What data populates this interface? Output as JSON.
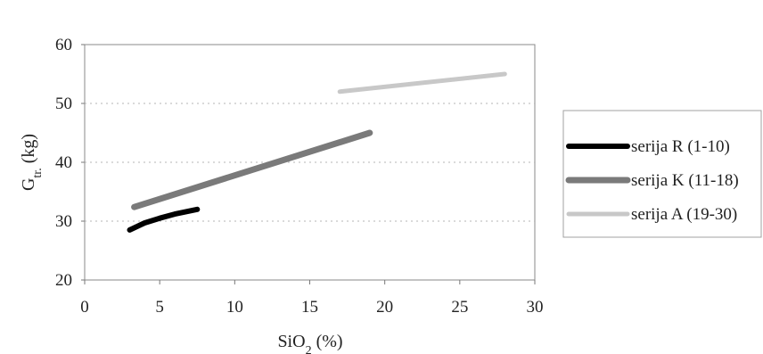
{
  "chart_data": {
    "type": "line",
    "title": "",
    "xlabel": {
      "main": "SiO",
      "sub": "2",
      "suffix": " (%)"
    },
    "ylabel": {
      "main": "G",
      "sub": "tr.",
      "suffix": " (kg)"
    },
    "xlim": [
      0,
      30
    ],
    "ylim": [
      20,
      60
    ],
    "xticks": [
      0,
      5,
      10,
      15,
      20,
      25,
      30
    ],
    "yticks": [
      20,
      30,
      40,
      50,
      60
    ],
    "grid": "horizontal dotted",
    "legend_position": "right",
    "series": [
      {
        "name": "serija R (1-10)",
        "color": "#000000",
        "x": [
          3,
          4,
          5,
          6,
          7.5
        ],
        "y": [
          28.5,
          29.7,
          30.5,
          31.2,
          32
        ]
      },
      {
        "name": "serija K (11-18)",
        "color": "#7a7a7a",
        "x": [
          3.3,
          19
        ],
        "y": [
          32.4,
          45
        ]
      },
      {
        "name": "serija A (19-30)",
        "color": "#c8c8c8",
        "x": [
          17,
          28
        ],
        "y": [
          52,
          55
        ]
      }
    ]
  }
}
